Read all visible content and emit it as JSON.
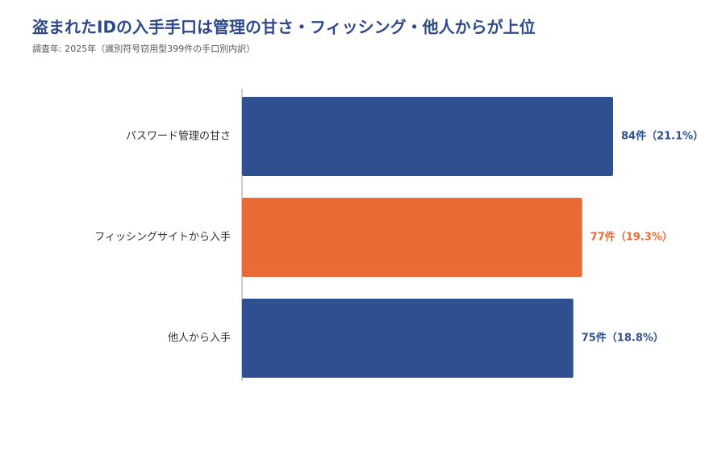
{
  "chart_data": {
    "type": "bar",
    "orientation": "horizontal",
    "title": "盗まれたIDの入手手口は管理の甘さ・フィッシング・他人からが上位",
    "subtitle": "調査年: 2025年（識別符号窃用型399件の手口別内訳）",
    "categories": [
      "パスワード管理の甘さ",
      "フィッシングサイトから入手",
      "他人から入手"
    ],
    "values": [
      84,
      77,
      75
    ],
    "value_labels": [
      "84件（21.1%）",
      "77件（19.3%）",
      "75件（18.8%）"
    ],
    "colors": [
      "#2e5090",
      "#e96a35",
      "#2e5090"
    ]
  }
}
